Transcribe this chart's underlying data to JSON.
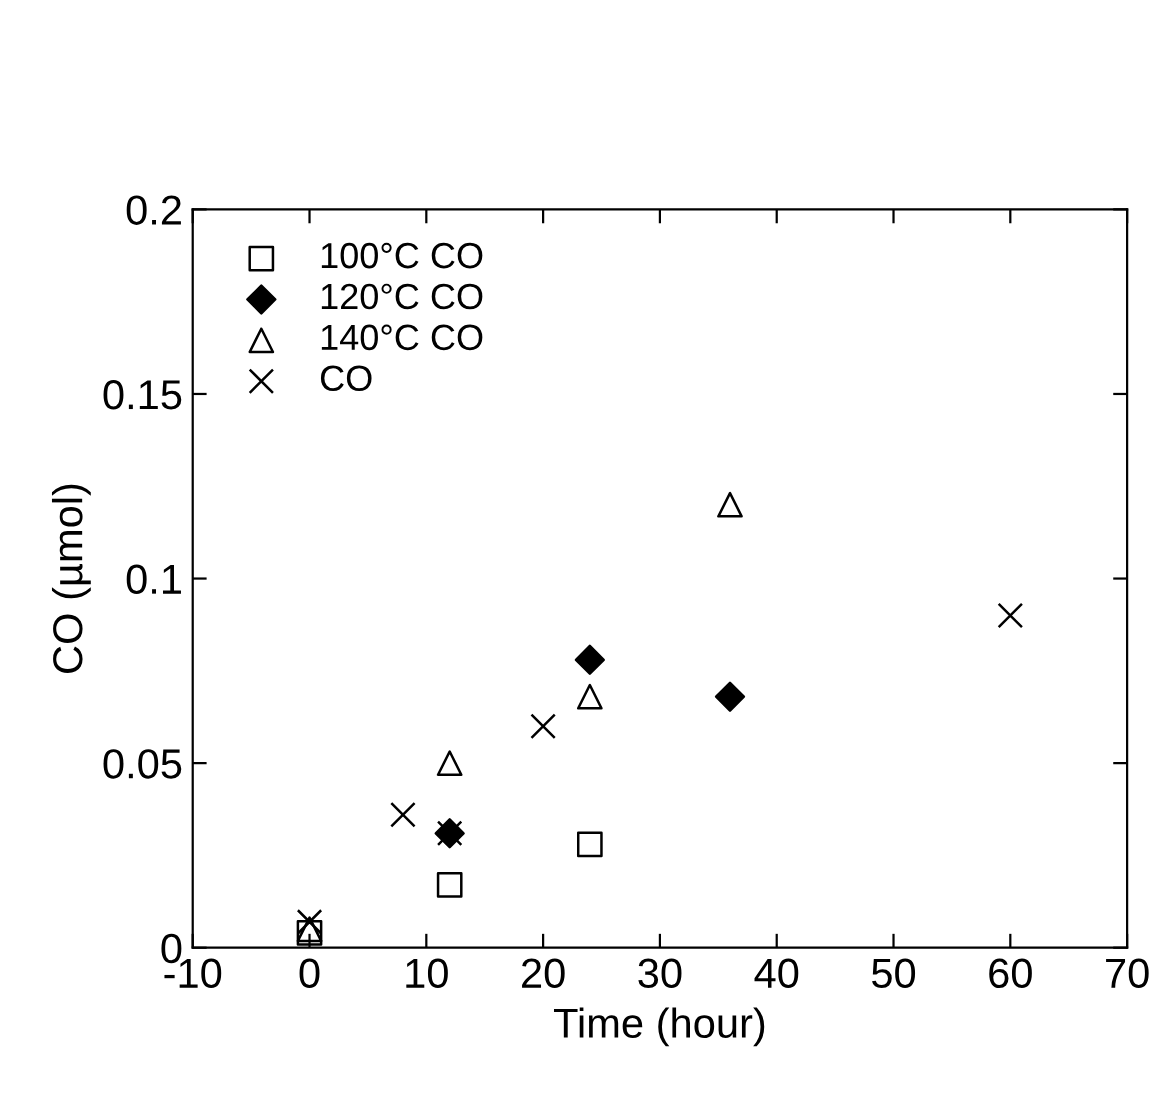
{
  "chart_data": {
    "type": "scatter",
    "xlabel": "Time (hour)",
    "ylabel": "CO (µmol)",
    "xlim": [
      -10,
      70
    ],
    "xticks": [
      -10,
      0,
      10,
      20,
      30,
      40,
      50,
      60,
      70
    ],
    "ylim": [
      0,
      0.2
    ],
    "yticks": [
      0,
      0.05,
      0.1,
      0.15,
      0.2
    ],
    "grid": false,
    "legend": "top left",
    "series": [
      {
        "name": "100°C CO",
        "color": "#000000",
        "marker": "square",
        "x": [
          0,
          12,
          24
        ],
        "values": [
          0.004,
          0.017,
          0.028
        ]
      },
      {
        "name": "120°C CO",
        "color": "#000000",
        "marker": "diamond",
        "x": [
          12,
          24,
          36
        ],
        "values": [
          0.031,
          0.078,
          0.068
        ]
      },
      {
        "name": "140°C CO",
        "color": "#000000",
        "marker": "triangle",
        "x": [
          0,
          12,
          24,
          36
        ],
        "values": [
          0.005,
          0.05,
          0.068,
          0.12
        ]
      },
      {
        "name": "CO",
        "color": "#000000",
        "marker": "cross",
        "x": [
          0,
          8,
          12,
          20,
          60
        ],
        "values": [
          0.007,
          0.036,
          0.031,
          0.06,
          0.09
        ]
      }
    ]
  }
}
